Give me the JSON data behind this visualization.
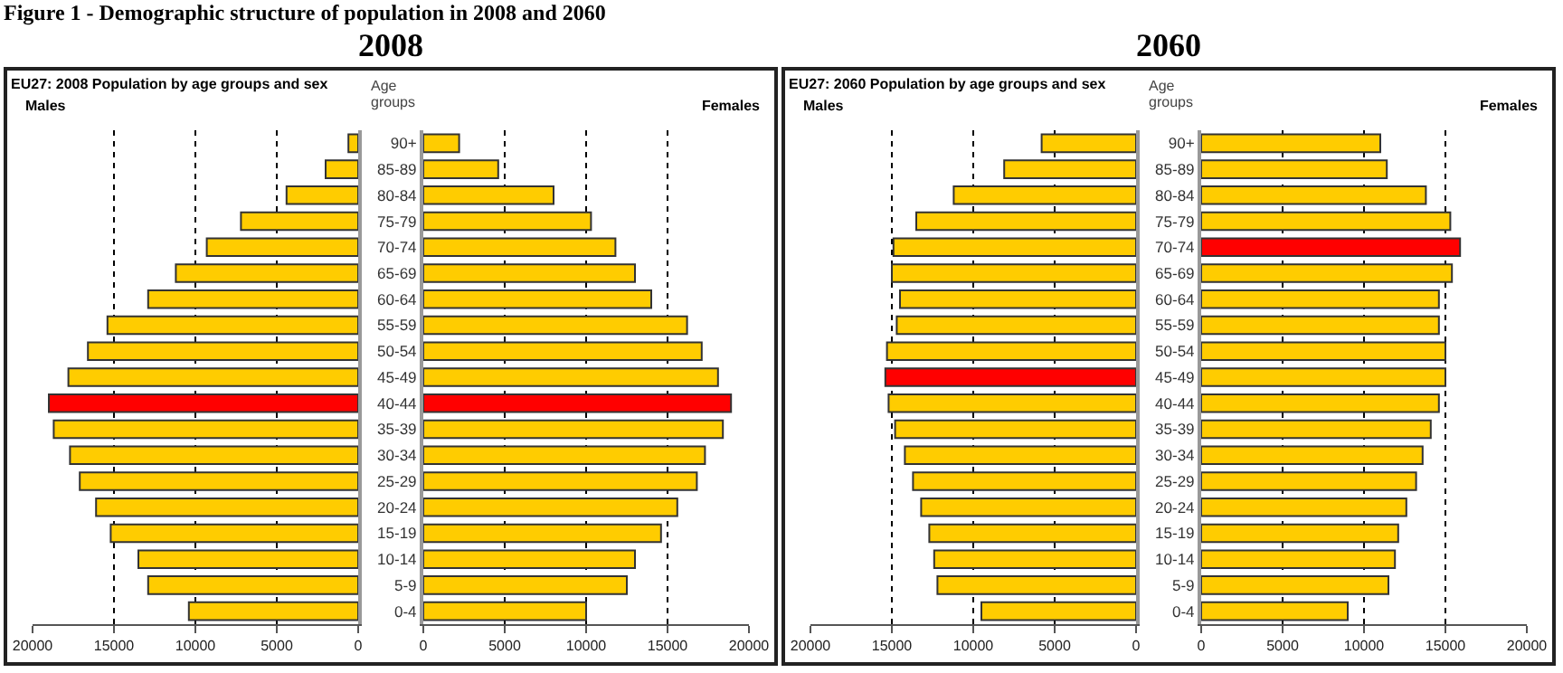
{
  "chart_data": [
    {
      "type": "bar",
      "orientation": "horizontal",
      "title": "2008",
      "subtitle": "EU27: 2008 Population by age groups and sex",
      "annotations": [
        "Figure 1 - Demographic structure of population in 2008 and 2060"
      ],
      "categories": [
        null,
        null,
        null,
        null,
        null,
        null,
        null,
        null,
        null,
        null,
        null,
        null,
        null,
        null,
        null,
        null,
        null,
        null,
        null
      ],
      "series": [
        {
          "name": "Males",
          "colors": [
            "#ffcc00",
            "#ffcc00",
            "#ffcc00",
            "#ffcc00",
            "#ffcc00",
            "#ffcc00",
            "#ffcc00",
            "#ffcc00",
            "#ffcc00",
            "#ffcc00",
            "#ff0000",
            "#ffcc00",
            "#ffcc00",
            "#ffcc00",
            "#ffcc00",
            "#ffcc00",
            "#ffcc00",
            "#ffcc00",
            "#ffcc00"
          ],
          "values": [
            600,
            2000,
            4400,
            7200,
            9300,
            11200,
            12900,
            15400,
            16600,
            17800,
            19000,
            18700,
            17700,
            17100,
            16100,
            15200,
            13500,
            12900,
            10400
          ]
        }
      ],
      "xlim": [
        20000,
        0
      ],
      "xticks": [
        20000,
        15000,
        10000,
        5000,
        0
      ],
      "grid": "x",
      "tick_labels": "x"
    },
    {
      "type": "bar",
      "orientation": "horizontal",
      "ylabel": "Age groups",
      "categories": [
        "90+",
        "85-89",
        "80-84",
        "75-79",
        "70-74",
        "65-69",
        "60-64",
        "55-59",
        "50-54",
        "45-49",
        "40-44",
        "35-39",
        "30-34",
        "25-29",
        "20-24",
        "15-19",
        "10-14",
        "5-9",
        "0-4"
      ],
      "series": [
        {
          "name": "Females",
          "colors": [
            "#ffcc00",
            "#ffcc00",
            "#ffcc00",
            "#ffcc00",
            "#ffcc00",
            "#ffcc00",
            "#ffcc00",
            "#ffcc00",
            "#ffcc00",
            "#ffcc00",
            "#ff0000",
            "#ffcc00",
            "#ffcc00",
            "#ffcc00",
            "#ffcc00",
            "#ffcc00",
            "#ffcc00",
            "#ffcc00",
            "#ffcc00"
          ],
          "values": [
            2200,
            4600,
            8000,
            10300,
            11800,
            13000,
            14000,
            16200,
            17100,
            18100,
            18900,
            18400,
            17300,
            16800,
            15600,
            14600,
            13000,
            12500,
            10000
          ]
        }
      ],
      "xlim": [
        0,
        20000
      ],
      "xticks": [
        0,
        5000,
        10000,
        15000,
        20000
      ],
      "grid": "x"
    },
    {
      "type": "bar",
      "orientation": "horizontal",
      "title": "2060",
      "subtitle": "EU27: 2060 Population by age groups and sex",
      "categories": [
        null,
        null,
        null,
        null,
        null,
        null,
        null,
        null,
        null,
        null,
        null,
        null,
        null,
        null,
        null,
        null,
        null,
        null,
        null
      ],
      "series": [
        {
          "name": "Males",
          "colors": [
            "#ffcc00",
            "#ffcc00",
            "#ffcc00",
            "#ffcc00",
            "#ffcc00",
            "#ffcc00",
            "#ffcc00",
            "#ffcc00",
            "#ffcc00",
            "#ff0000",
            "#ffcc00",
            "#ffcc00",
            "#ffcc00",
            "#ffcc00",
            "#ffcc00",
            "#ffcc00",
            "#ffcc00",
            "#ffcc00",
            "#ffcc00"
          ],
          "values": [
            5800,
            8100,
            11200,
            13500,
            14900,
            15000,
            14500,
            14700,
            15300,
            15400,
            15200,
            14800,
            14200,
            13700,
            13200,
            12700,
            12400,
            12200,
            9500
          ]
        }
      ],
      "xlim": [
        20000,
        0
      ],
      "xticks": [
        20000,
        15000,
        10000,
        5000,
        0
      ],
      "grid": "x",
      "tick_labels": "x"
    },
    {
      "type": "bar",
      "orientation": "horizontal",
      "ylabel": "Age groups",
      "categories": [
        "90+",
        "85-89",
        "80-84",
        "75-79",
        "70-74",
        "65-69",
        "60-64",
        "55-59",
        "50-54",
        "45-49",
        "40-44",
        "35-39",
        "30-34",
        "25-29",
        "20-24",
        "15-19",
        "10-14",
        "5-9",
        "0-4"
      ],
      "series": [
        {
          "name": "Females",
          "colors": [
            "#ffcc00",
            "#ffcc00",
            "#ffcc00",
            "#ffcc00",
            "#ff0000",
            "#ffcc00",
            "#ffcc00",
            "#ffcc00",
            "#ffcc00",
            "#ffcc00",
            "#ffcc00",
            "#ffcc00",
            "#ffcc00",
            "#ffcc00",
            "#ffcc00",
            "#ffcc00",
            "#ffcc00",
            "#ffcc00",
            "#ffcc00"
          ],
          "values": [
            11000,
            11400,
            13800,
            15300,
            15900,
            15400,
            14600,
            14600,
            15000,
            15000,
            14600,
            14100,
            13600,
            13200,
            12600,
            12100,
            11900,
            11500,
            9000
          ]
        }
      ],
      "xlim": [
        0,
        20000
      ],
      "xticks": [
        0,
        5000,
        10000,
        15000,
        20000
      ],
      "grid": "x"
    }
  ]
}
